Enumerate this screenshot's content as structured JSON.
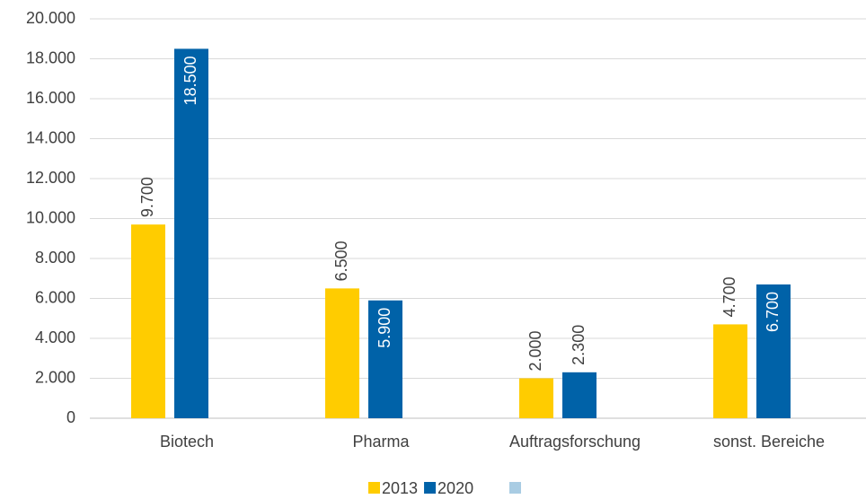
{
  "chart_data": {
    "type": "bar",
    "categories": [
      "Biotech",
      "Pharma",
      "Auftragsforschung",
      "sonst. Bereiche"
    ],
    "series": [
      {
        "name": "2013",
        "color": "#ffcc00",
        "values": [
          9700,
          6500,
          2000,
          4700
        ],
        "value_labels": [
          "9.700",
          "6.500",
          "2.000",
          "4.700"
        ],
        "label_position": "outside_end"
      },
      {
        "name": "2020",
        "color": "#0062a8",
        "values": [
          18500,
          5900,
          2300,
          6700
        ],
        "value_labels": [
          "18.500",
          "5.900",
          "2.300",
          "6.700"
        ],
        "label_position": "inside_end"
      }
    ],
    "ylim": [
      0,
      20000
    ],
    "yticks": [
      0,
      {
        "value": 2000,
        "label": "2.000"
      },
      {
        "value": 4000,
        "label": "4.000"
      },
      {
        "value": 6000,
        "label": "6.000"
      },
      {
        "value": 8000,
        "label": "8.000"
      },
      {
        "value": 10000,
        "label": "10.000"
      },
      {
        "value": 12000,
        "label": "12.000"
      },
      {
        "value": 14000,
        "label": "14.000"
      },
      {
        "value": 16000,
        "label": "16.000"
      },
      {
        "value": 18000,
        "label": "18.000"
      },
      {
        "value": 20000,
        "label": "20.000"
      }
    ],
    "grid": true,
    "legend": "bottom"
  }
}
